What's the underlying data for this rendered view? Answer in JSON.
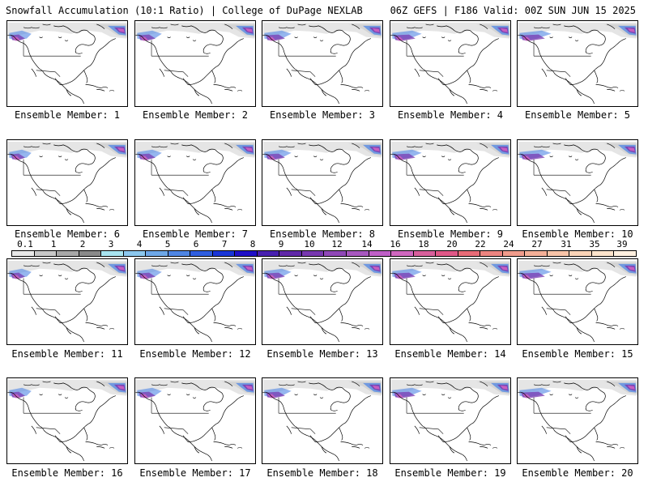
{
  "header": {
    "title_left": "Snowfall Accumulation (10:1 Ratio) | College of DuPage NEXLAB",
    "title_right": "06Z GEFS | F186 Valid: 00Z SUN JUN 15 2025"
  },
  "panels": [
    {
      "label": "Ensemble Member: 1"
    },
    {
      "label": "Ensemble Member: 2"
    },
    {
      "label": "Ensemble Member: 3"
    },
    {
      "label": "Ensemble Member: 4"
    },
    {
      "label": "Ensemble Member: 5"
    },
    {
      "label": "Ensemble Member: 6"
    },
    {
      "label": "Ensemble Member: 7"
    },
    {
      "label": "Ensemble Member: 8"
    },
    {
      "label": "Ensemble Member: 9"
    },
    {
      "label": "Ensemble Member: 10"
    },
    {
      "label": "Ensemble Member: 11"
    },
    {
      "label": "Ensemble Member: 12"
    },
    {
      "label": "Ensemble Member: 13"
    },
    {
      "label": "Ensemble Member: 14"
    },
    {
      "label": "Ensemble Member: 15"
    },
    {
      "label": "Ensemble Member: 16"
    },
    {
      "label": "Ensemble Member: 17"
    },
    {
      "label": "Ensemble Member: 18"
    },
    {
      "label": "Ensemble Member: 19"
    },
    {
      "label": "Ensemble Member: 20"
    }
  ],
  "colorbar": {
    "labels": [
      "0.1",
      "1",
      "2",
      "3",
      "4",
      "5",
      "6",
      "7",
      "8",
      "9",
      "10",
      "12",
      "14",
      "16",
      "18",
      "20",
      "22",
      "24",
      "27",
      "31",
      "35",
      "39"
    ],
    "colors": [
      "#e8e8e8",
      "#c8c8c8",
      "#a8a8a8",
      "#8a8a8a",
      "#a8e4f0",
      "#8cc8ee",
      "#6ea8e8",
      "#4f86e4",
      "#2f5ee0",
      "#1a36d8",
      "#2010c8",
      "#4820b0",
      "#6028a8",
      "#7838b0",
      "#9048b8",
      "#a858c0",
      "#c060c8",
      "#d068c0",
      "#d8609c",
      "#e05888",
      "#e86c78",
      "#ec8480",
      "#f09c8c",
      "#f4b098",
      "#f8c4a8",
      "#fad4b8",
      "#fce4cc",
      "#fff0e0"
    ]
  },
  "colors": {
    "land_outline": "#000000",
    "snow_light": "#d0d0d0",
    "snow_blue": "#4f86e4",
    "snow_purple": "#7838b0",
    "snow_magenta": "#d060c0"
  }
}
